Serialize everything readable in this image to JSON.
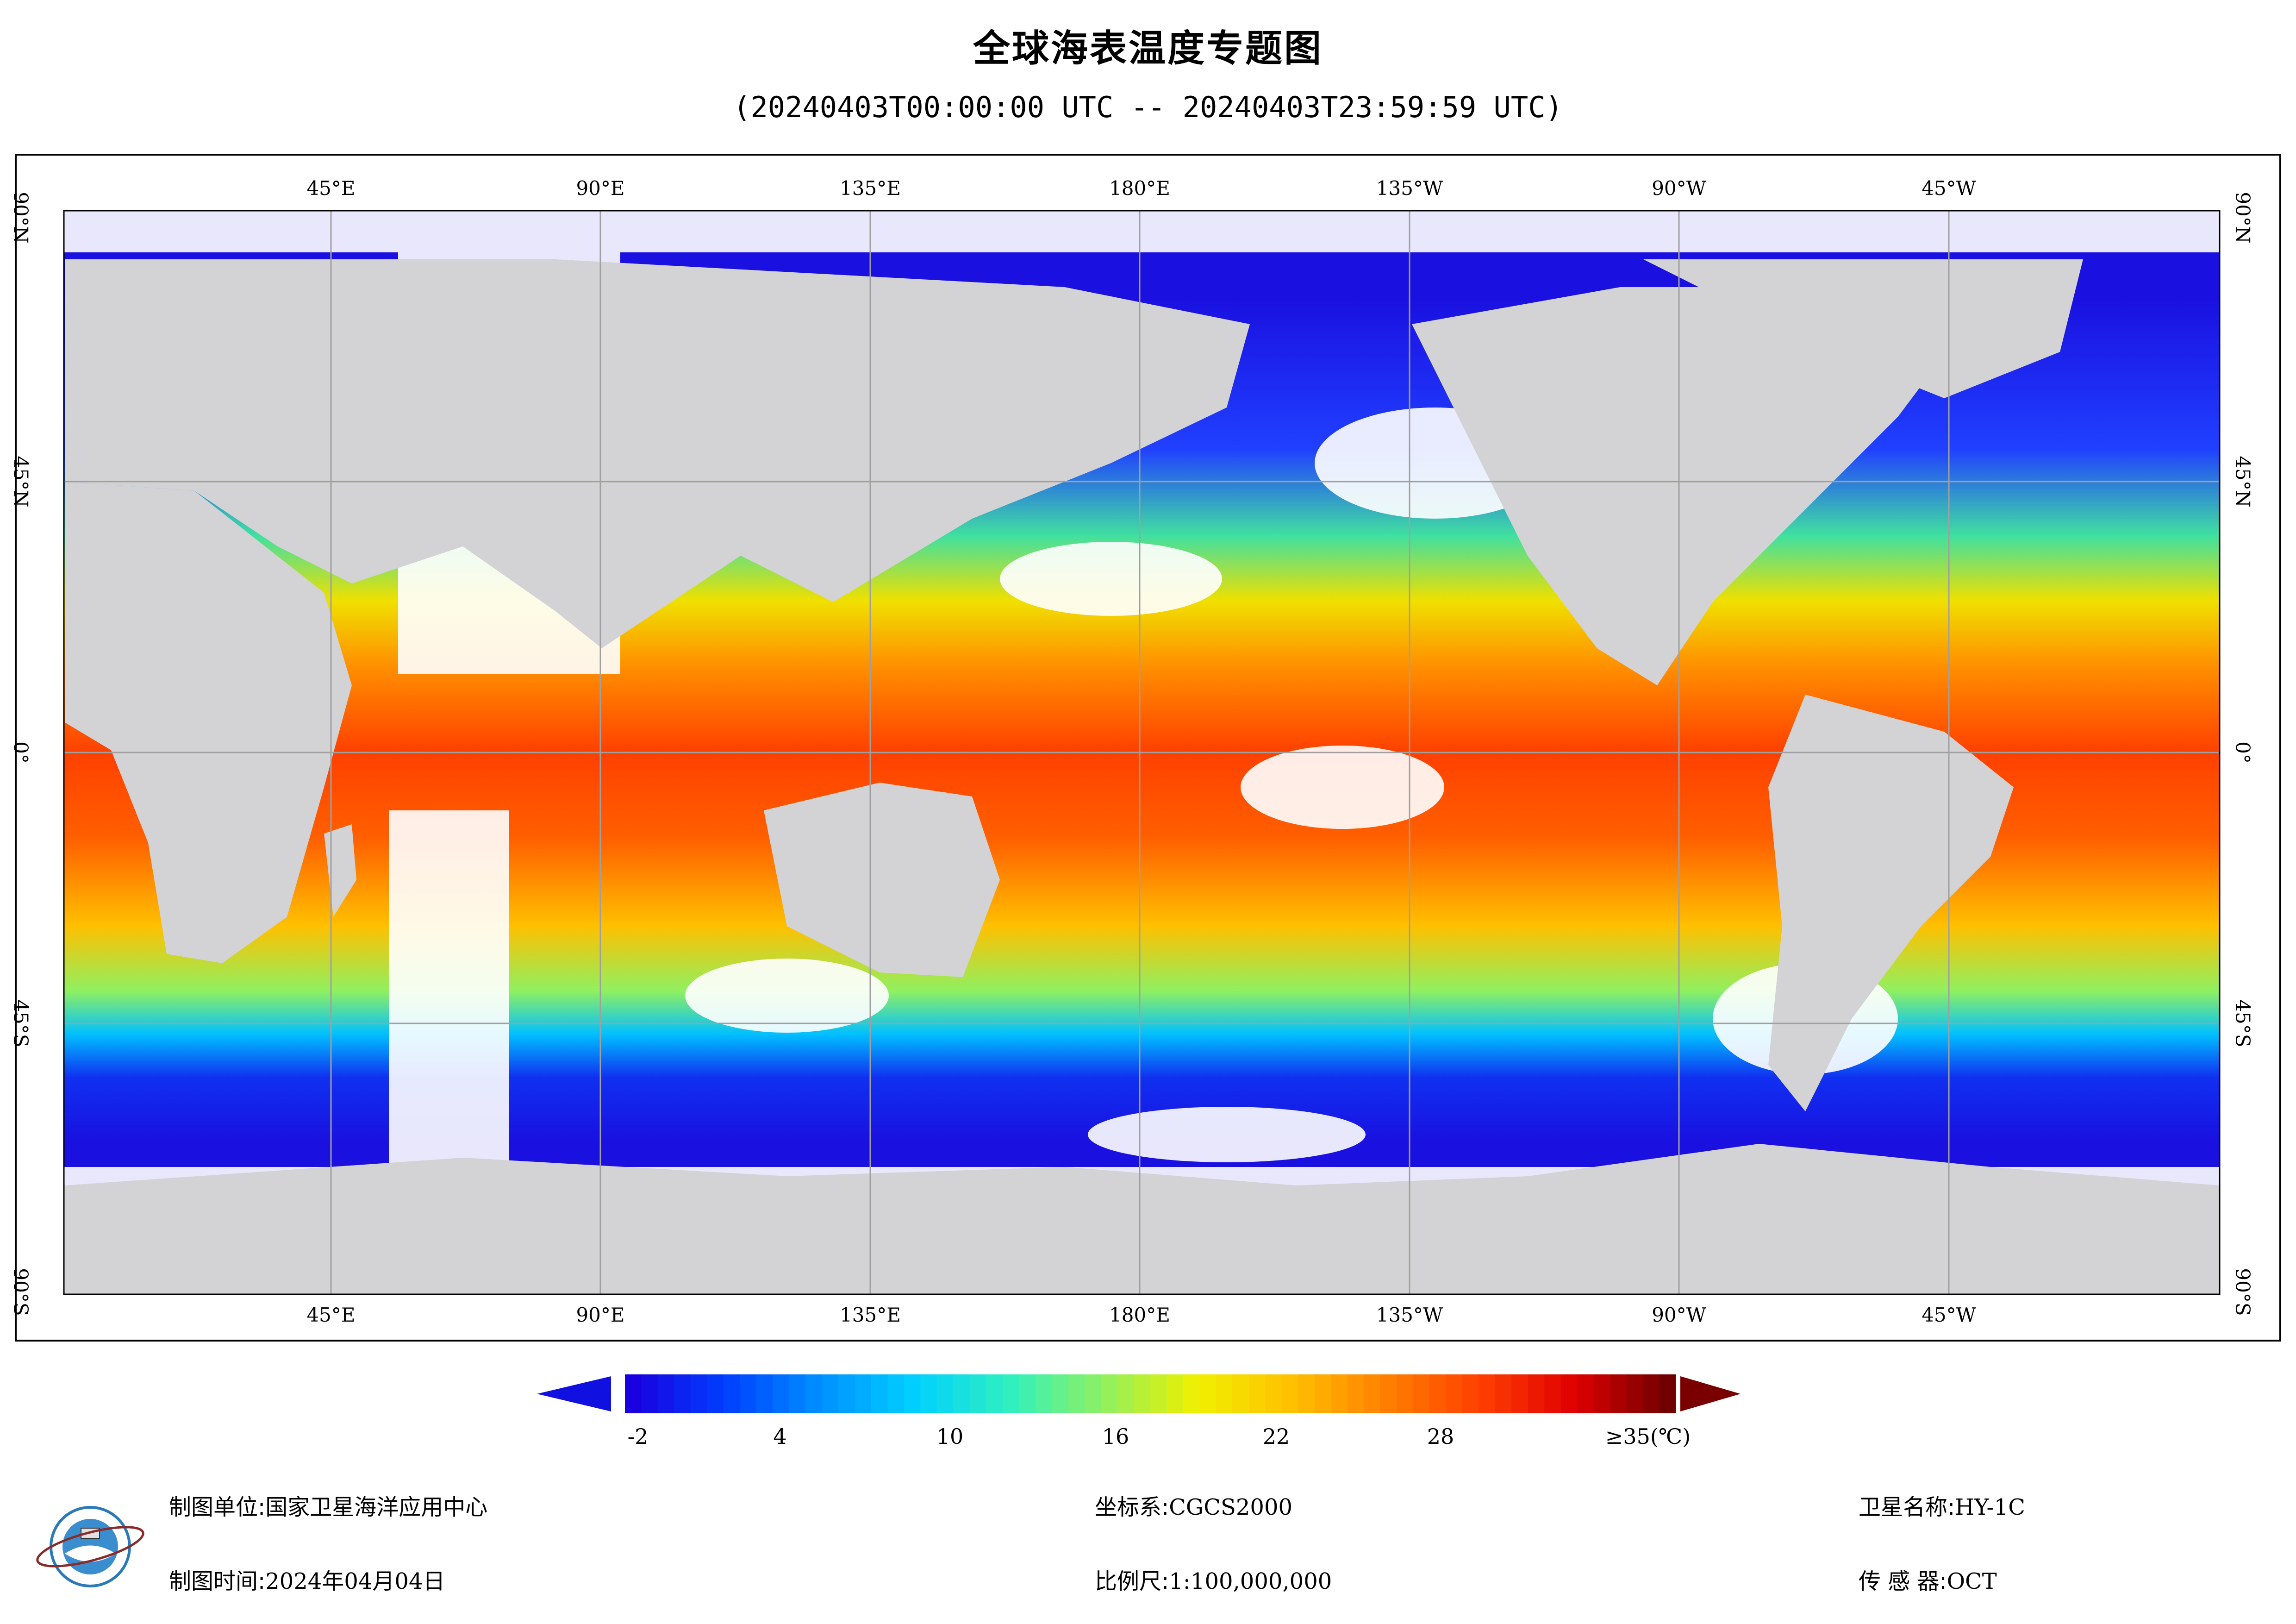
{
  "header": {
    "title": "全球海表温度专题图",
    "subtitle": "(20240403T00:00:00 UTC -- 20240403T23:59:59 UTC)"
  },
  "map": {
    "longitude_ticks": [
      "45°E",
      "90°E",
      "135°E",
      "180°E",
      "135°W",
      "90°W",
      "45°W"
    ],
    "latitude_ticks": [
      "90°N",
      "45°N",
      "0°",
      "45°S",
      "90°S"
    ],
    "colors": {
      "land": "#d3d3d5",
      "no_data": "#ffffff",
      "grid": "#a0a0a0"
    }
  },
  "colorbar": {
    "labels": [
      "-2",
      "4",
      "10",
      "16",
      "22",
      "28",
      "≥35(℃)"
    ],
    "colors": [
      "#1a00e0",
      "#0040ff",
      "#0090ff",
      "#00d0ff",
      "#30f0c0",
      "#90f060",
      "#f0f000",
      "#ffc000",
      "#ff8000",
      "#ff4000",
      "#e00000",
      "#700000"
    ],
    "min_arrow_color": "#1010e0",
    "max_arrow_color": "#7a0000"
  },
  "footer": {
    "unit_label": "制图单位:",
    "unit_value": "国家卫星海洋应用中心",
    "time_label": "制图时间:",
    "time_value": "2024年04月04日",
    "crs_label": "坐标系:",
    "crs_value": "CGCS2000",
    "scale_label": "比例尺:",
    "scale_value": "1:100,000,000",
    "satellite_label": "卫星名称:",
    "satellite_value": "HY-1C",
    "sensor_label": "传 感 器:",
    "sensor_value": "OCT"
  }
}
